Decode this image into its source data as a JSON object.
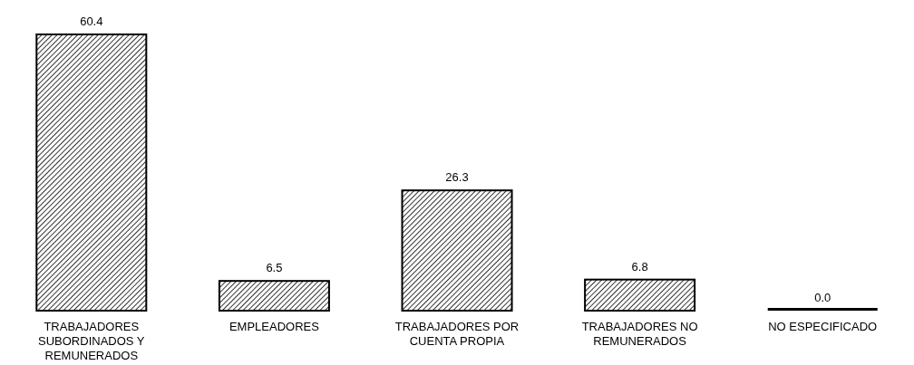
{
  "chart_data": {
    "type": "bar",
    "categories": [
      "TRABAJADORES SUBORDINADOS Y REMUNERADOS",
      "EMPLEADORES",
      "TRABAJADORES POR CUENTA PROPIA",
      "TRABAJADORES NO REMUNERADOS",
      "NO ESPECIFICADO"
    ],
    "values": [
      60.4,
      6.5,
      26.3,
      6.8,
      0.0
    ],
    "value_labels": [
      "60.4",
      "6.5",
      "26.3",
      "6.8",
      "0.0"
    ],
    "color": "#000000",
    "grid": false,
    "legend": false
  }
}
